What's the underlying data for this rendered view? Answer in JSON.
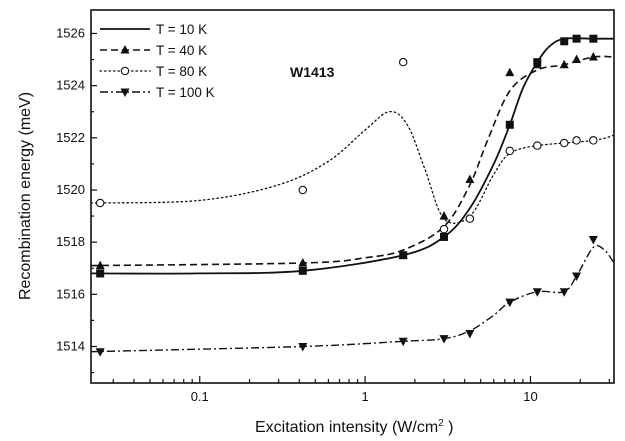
{
  "chart_data": {
    "type": "line",
    "xlabel": "Excitation intensity (W/cm",
    "xlabel_sup": "2",
    "xlabel_end": " )",
    "ylabel": "Recombination energy (meV)",
    "xscale": "log",
    "xlim": [
      0.022,
      32
    ],
    "ylim": [
      1512.6,
      1526.9
    ],
    "x_ticks": [
      0.1,
      1,
      10
    ],
    "x_tick_labels": [
      "0.1",
      "1",
      "10"
    ],
    "y_ticks": [
      1514,
      1516,
      1518,
      1520,
      1522,
      1524,
      1526
    ],
    "y_tick_labels": [
      "1514",
      "1516",
      "1518",
      "1520",
      "1522",
      "1524",
      "1526"
    ],
    "annotation": "W1413",
    "legend_position": "top-left",
    "series": [
      {
        "name": "T = 10 K",
        "marker": "square",
        "line": "solid",
        "points": [
          [
            0.025,
            1516.8
          ],
          [
            0.42,
            1516.9
          ],
          [
            1.7,
            1517.5
          ],
          [
            3.0,
            1518.2
          ],
          [
            7.5,
            1522.5
          ],
          [
            11,
            1524.9
          ],
          [
            16,
            1525.7
          ],
          [
            19,
            1525.8
          ],
          [
            24,
            1525.8
          ]
        ],
        "curve": [
          [
            0.022,
            1516.8
          ],
          [
            0.1,
            1516.8
          ],
          [
            0.42,
            1516.9
          ],
          [
            1.7,
            1517.5
          ],
          [
            3.0,
            1518.2
          ],
          [
            4.3,
            1519.3
          ],
          [
            6.0,
            1521.0
          ],
          [
            7.5,
            1522.5
          ],
          [
            9.0,
            1523.9
          ],
          [
            11,
            1524.9
          ],
          [
            13,
            1525.5
          ],
          [
            16,
            1525.8
          ],
          [
            24,
            1525.8
          ],
          [
            32,
            1525.8
          ]
        ]
      },
      {
        "name": "T = 40 K",
        "marker": "triangle-up",
        "line": "dashed",
        "points": [
          [
            0.025,
            1517.1
          ],
          [
            0.42,
            1517.2
          ],
          [
            1.7,
            1517.5
          ],
          [
            3.0,
            1519.0
          ],
          [
            4.3,
            1520.4
          ],
          [
            7.5,
            1524.5
          ],
          [
            11,
            1524.8
          ],
          [
            16,
            1524.8
          ],
          [
            19,
            1525.0
          ],
          [
            24,
            1525.1
          ]
        ],
        "curve": [
          [
            0.022,
            1517.1
          ],
          [
            0.42,
            1517.2
          ],
          [
            1.0,
            1517.4
          ],
          [
            1.7,
            1517.7
          ],
          [
            3.0,
            1518.6
          ],
          [
            4.3,
            1520.2
          ],
          [
            5.5,
            1521.9
          ],
          [
            7.5,
            1523.8
          ],
          [
            11,
            1524.6
          ],
          [
            16,
            1524.8
          ],
          [
            24,
            1525.1
          ],
          [
            32,
            1525.1
          ]
        ]
      },
      {
        "name": "T = 80 K",
        "marker": "circle-open",
        "line": "dotted",
        "points": [
          [
            0.025,
            1519.5
          ],
          [
            0.42,
            1520.0
          ],
          [
            1.7,
            1524.9
          ],
          [
            3.0,
            1518.5
          ],
          [
            4.3,
            1518.9
          ],
          [
            7.5,
            1521.5
          ],
          [
            11,
            1521.7
          ],
          [
            16,
            1521.8
          ],
          [
            19,
            1521.9
          ],
          [
            24,
            1521.9
          ]
        ],
        "curve": [
          [
            0.022,
            1519.5
          ],
          [
            0.1,
            1519.6
          ],
          [
            0.3,
            1520.2
          ],
          [
            0.6,
            1521.1
          ],
          [
            1.0,
            1522.3
          ],
          [
            1.4,
            1523.0
          ],
          [
            1.8,
            1522.5
          ],
          [
            2.3,
            1520.8
          ],
          [
            3.0,
            1518.9
          ],
          [
            4.3,
            1519.0
          ],
          [
            6.0,
            1520.6
          ],
          [
            7.5,
            1521.4
          ],
          [
            11,
            1521.7
          ],
          [
            24,
            1521.9
          ],
          [
            32,
            1522.1
          ]
        ]
      },
      {
        "name": "T = 100 K",
        "marker": "triangle-down",
        "line": "dashdot",
        "points": [
          [
            0.025,
            1513.8
          ],
          [
            0.42,
            1514.0
          ],
          [
            1.7,
            1514.2
          ],
          [
            3.0,
            1514.3
          ],
          [
            4.3,
            1514.5
          ],
          [
            7.5,
            1515.7
          ],
          [
            11,
            1516.1
          ],
          [
            16,
            1516.1
          ],
          [
            19,
            1516.7
          ],
          [
            24,
            1518.1
          ]
        ],
        "curve": [
          [
            0.022,
            1513.8
          ],
          [
            0.42,
            1514.0
          ],
          [
            1.7,
            1514.2
          ],
          [
            3.0,
            1514.3
          ],
          [
            4.3,
            1514.6
          ],
          [
            6.0,
            1515.2
          ],
          [
            7.5,
            1515.7
          ],
          [
            11,
            1516.1
          ],
          [
            16,
            1516.1
          ],
          [
            19,
            1516.7
          ],
          [
            24,
            1517.8
          ],
          [
            28,
            1517.7
          ],
          [
            32,
            1517.2
          ]
        ]
      }
    ]
  }
}
